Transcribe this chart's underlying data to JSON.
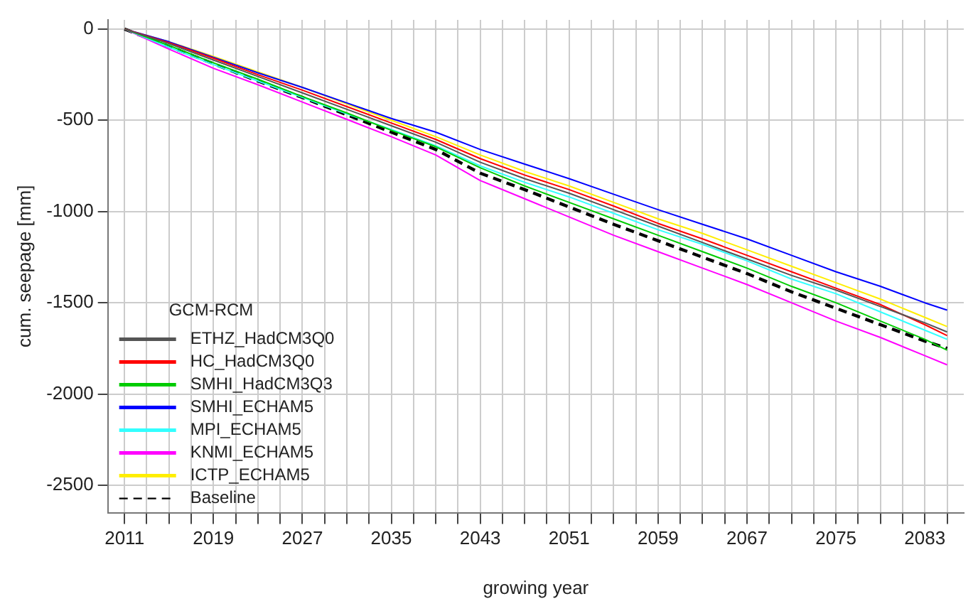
{
  "chart_data": {
    "type": "line",
    "xlabel": "growing year",
    "ylabel": "cum. seepage [mm]",
    "legend_title": "GCM-RCM",
    "x": [
      2011,
      2015,
      2019,
      2023,
      2027,
      2031,
      2035,
      2039,
      2043,
      2047,
      2051,
      2055,
      2059,
      2063,
      2067,
      2071,
      2075,
      2079,
      2083,
      2085
    ],
    "xlim": [
      2009.5,
      2086.5
    ],
    "xticks": [
      2011,
      {
        "value": 2013,
        "label": null
      },
      {
        "value": 2015,
        "label": null
      },
      {
        "value": 2017,
        "label": null
      },
      2019,
      {
        "value": 2021,
        "label": null
      },
      {
        "value": 2023,
        "label": null
      },
      {
        "value": 2025,
        "label": null
      },
      2027,
      {
        "value": 2029,
        "label": null
      },
      {
        "value": 2031,
        "label": null
      },
      {
        "value": 2033,
        "label": null
      },
      2035,
      {
        "value": 2037,
        "label": null
      },
      {
        "value": 2039,
        "label": null
      },
      {
        "value": 2041,
        "label": null
      },
      2043,
      {
        "value": 2045,
        "label": null
      },
      {
        "value": 2047,
        "label": null
      },
      {
        "value": 2049,
        "label": null
      },
      2051,
      {
        "value": 2053,
        "label": null
      },
      {
        "value": 2055,
        "label": null
      },
      {
        "value": 2057,
        "label": null
      },
      2059,
      {
        "value": 2061,
        "label": null
      },
      {
        "value": 2063,
        "label": null
      },
      {
        "value": 2065,
        "label": null
      },
      2067,
      {
        "value": 2069,
        "label": null
      },
      {
        "value": 2071,
        "label": null
      },
      {
        "value": 2073,
        "label": null
      },
      2075,
      {
        "value": 2077,
        "label": null
      },
      {
        "value": 2079,
        "label": null
      },
      {
        "value": 2081,
        "label": null
      },
      2083,
      {
        "value": 2085,
        "label": null
      }
    ],
    "ylim": [
      -2650,
      50
    ],
    "yticks": [
      -2500,
      -2000,
      -1500,
      -1000,
      -500,
      0
    ],
    "grid": true,
    "legend": "bottom left",
    "marker": "none",
    "line_style": "solid",
    "series": [
      {
        "name": "ETHZ_HadCM3Q0",
        "color": "#555555",
        "values": [
          0,
          -80,
          -170,
          -260,
          -350,
          -440,
          -530,
          -620,
          -730,
          -820,
          -900,
          -990,
          -1080,
          -1170,
          -1260,
          -1350,
          -1430,
          -1520,
          -1610,
          -1660
        ]
      },
      {
        "name": "HC_HadCM3Q0",
        "color": "#ff0000",
        "values": [
          0,
          -75,
          -160,
          -250,
          -335,
          -425,
          -515,
          -605,
          -710,
          -800,
          -880,
          -970,
          -1065,
          -1150,
          -1240,
          -1330,
          -1420,
          -1510,
          -1620,
          -1680
        ]
      },
      {
        "name": "SMHI_HadCM3Q3",
        "color": "#00cc00",
        "values": [
          0,
          -90,
          -185,
          -275,
          -370,
          -460,
          -555,
          -645,
          -760,
          -860,
          -950,
          -1040,
          -1130,
          -1220,
          -1310,
          -1410,
          -1500,
          -1600,
          -1700,
          -1760
        ]
      },
      {
        "name": "SMHI_ECHAM5",
        "color": "#0000ff",
        "values": [
          0,
          -70,
          -155,
          -240,
          -320,
          -405,
          -490,
          -565,
          -660,
          -740,
          -820,
          -905,
          -990,
          -1070,
          -1150,
          -1240,
          -1330,
          -1410,
          -1500,
          -1540
        ]
      },
      {
        "name": "MPI_ECHAM5",
        "color": "#33ffff",
        "values": [
          0,
          -100,
          -195,
          -285,
          -375,
          -465,
          -550,
          -640,
          -750,
          -840,
          -920,
          -1010,
          -1100,
          -1180,
          -1270,
          -1370,
          -1450,
          -1550,
          -1650,
          -1700
        ]
      },
      {
        "name": "KNMI_ECHAM5",
        "color": "#ff00ff",
        "values": [
          0,
          -110,
          -215,
          -305,
          -400,
          -495,
          -590,
          -690,
          -830,
          -930,
          -1030,
          -1130,
          -1220,
          -1310,
          -1400,
          -1500,
          -1600,
          -1690,
          -1790,
          -1840
        ]
      },
      {
        "name": "ICTP_ECHAM5",
        "color": "#ffee00",
        "values": [
          0,
          -70,
          -150,
          -235,
          -320,
          -410,
          -500,
          -590,
          -690,
          -780,
          -860,
          -950,
          -1040,
          -1120,
          -1210,
          -1300,
          -1390,
          -1480,
          -1580,
          -1630
        ]
      },
      {
        "name": "Baseline",
        "color": "#000000",
        "line_style": "dashed",
        "values": [
          0,
          -95,
          -190,
          -285,
          -375,
          -470,
          -565,
          -660,
          -790,
          -880,
          -975,
          -1070,
          -1160,
          -1250,
          -1340,
          -1440,
          -1530,
          -1620,
          -1710,
          -1750
        ]
      }
    ]
  }
}
